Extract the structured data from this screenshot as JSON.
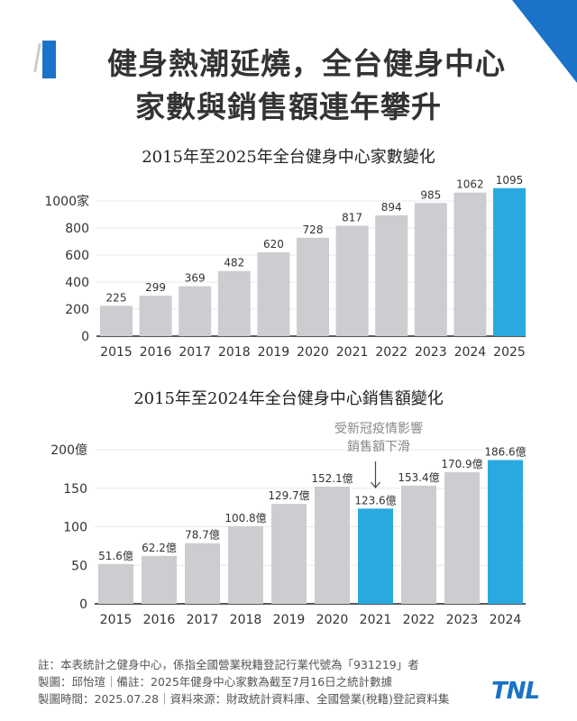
{
  "header": {
    "title_line1": "健身熱潮延燒，全台健身中心",
    "title_line2": "家數與銷售額連年攀升",
    "accent_color": "#1a73c9"
  },
  "chart_data": [
    {
      "type": "bar",
      "title": "2015年至2025年全台健身中心家數變化",
      "categories": [
        "2015",
        "2016",
        "2017",
        "2018",
        "2019",
        "2020",
        "2021",
        "2022",
        "2023",
        "2024",
        "2025"
      ],
      "values": [
        225,
        299,
        369,
        482,
        620,
        728,
        817,
        894,
        985,
        1062,
        1095
      ],
      "data_labels": [
        "225",
        "299",
        "369",
        "482",
        "620",
        "728",
        "817",
        "894",
        "985",
        "1062",
        "1095"
      ],
      "yticks": [
        "0",
        "200",
        "400",
        "600",
        "800",
        "1000家"
      ],
      "ytick_values": [
        0,
        200,
        400,
        600,
        800,
        1000
      ],
      "ylim": [
        0,
        1130
      ],
      "highlight_index": 10,
      "colors": {
        "default": "#cdcdd1",
        "highlight": "#2aa9e0"
      }
    },
    {
      "type": "bar",
      "title": "2015年至2024年全台健身中心銷售額變化",
      "categories": [
        "2015",
        "2016",
        "2017",
        "2018",
        "2019",
        "2020",
        "2021",
        "2022",
        "2023",
        "2024"
      ],
      "values": [
        51.6,
        62.2,
        78.7,
        100.8,
        129.7,
        152.1,
        123.6,
        153.4,
        170.9,
        186.6
      ],
      "data_labels": [
        "51.6億",
        "62.2億",
        "78.7億",
        "100.8億",
        "129.7億",
        "152.1億",
        "123.6億",
        "153.4億",
        "170.9億",
        "186.6億"
      ],
      "yticks": [
        "0",
        "50",
        "100",
        "150",
        "200億"
      ],
      "ytick_values": [
        0,
        50,
        100,
        150,
        200
      ],
      "ylim": [
        0,
        200
      ],
      "highlight_index": [
        6,
        9
      ],
      "annotation": {
        "line1": "受新冠疫情影響",
        "line2": "銷售額下滑",
        "index": 6
      },
      "colors": {
        "default": "#cdcdd1",
        "highlight": "#2aa9e0"
      }
    }
  ],
  "footer": {
    "note1": "註：本表統計之健身中心，係指全國營業稅籍登記行業代號為「931219」者",
    "note2": "製圖：邱怡瑄｜備註：2025年健身中心家數為截至7月16日之統計數據",
    "note3": "製圖時間：2025.07.28｜資料來源：財政統計資料庫、全國營業(稅籍)登記資料集",
    "logo": "TNL"
  }
}
